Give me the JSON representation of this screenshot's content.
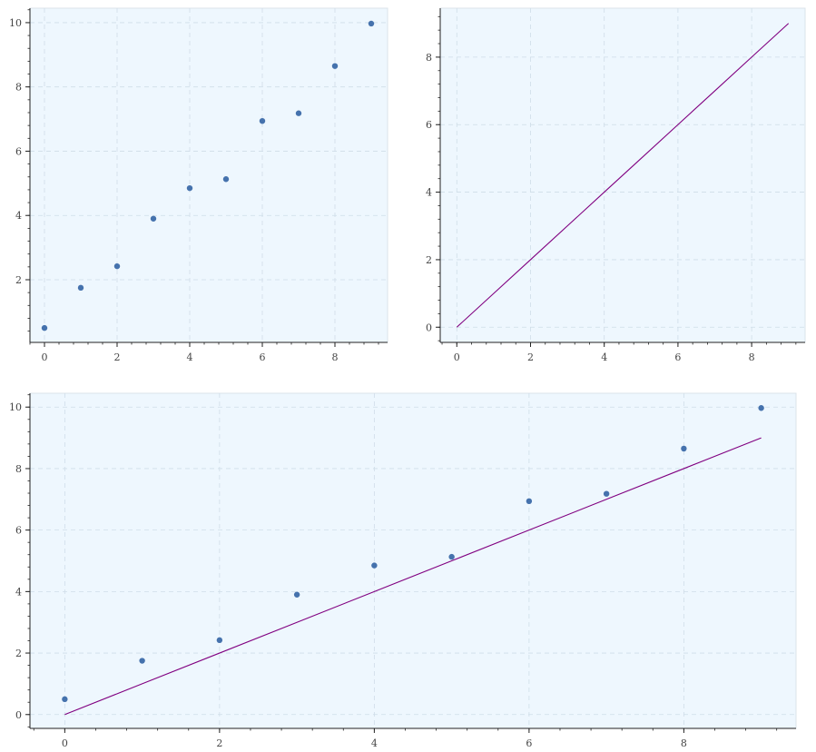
{
  "colors": {
    "plot_background": "#eef7fe",
    "scatter": "#4572ad",
    "line": "#800080"
  },
  "chart_data": [
    {
      "id": "scatter-chart",
      "type": "scatter",
      "title": "",
      "xlabel": "",
      "ylabel": "",
      "grid": true,
      "xlim": [
        -0.4,
        9.45
      ],
      "ylim": [
        0.05,
        10.45
      ],
      "x_ticks": [
        0,
        2,
        4,
        6,
        8
      ],
      "y_ticks": [
        2,
        4,
        6,
        8,
        10
      ],
      "series": [
        {
          "type": "scatter",
          "color": "#4572ad",
          "x": [
            0,
            1,
            2,
            3,
            4,
            5,
            6,
            7,
            8,
            9
          ],
          "y": [
            0.5,
            1.75,
            2.42,
            3.9,
            4.85,
            5.13,
            6.94,
            7.18,
            8.65,
            9.97
          ]
        }
      ]
    },
    {
      "id": "line-chart",
      "type": "line",
      "title": "",
      "xlabel": "",
      "ylabel": "",
      "grid": true,
      "xlim": [
        -0.45,
        9.45
      ],
      "ylim": [
        -0.45,
        9.45
      ],
      "x_ticks": [
        0,
        2,
        4,
        6,
        8
      ],
      "y_ticks": [
        0,
        2,
        4,
        6,
        8
      ],
      "series": [
        {
          "type": "line",
          "color": "#800080",
          "x": [
            0,
            1,
            2,
            3,
            4,
            5,
            6,
            7,
            8,
            9
          ],
          "y": [
            0,
            1,
            2,
            3,
            4,
            5,
            6,
            7,
            8,
            9
          ]
        }
      ]
    },
    {
      "id": "combined-chart",
      "type": "scatter",
      "title": "",
      "xlabel": "",
      "ylabel": "",
      "grid": true,
      "xlim": [
        -0.45,
        9.45
      ],
      "ylim": [
        -0.45,
        10.45
      ],
      "x_ticks": [
        0,
        2,
        4,
        6,
        8
      ],
      "y_ticks": [
        0,
        2,
        4,
        6,
        8,
        10
      ],
      "series": [
        {
          "type": "scatter",
          "color": "#4572ad",
          "x": [
            0,
            1,
            2,
            3,
            4,
            5,
            6,
            7,
            8,
            9
          ],
          "y": [
            0.5,
            1.75,
            2.42,
            3.9,
            4.85,
            5.13,
            6.94,
            7.18,
            8.65,
            9.97
          ]
        },
        {
          "type": "line",
          "color": "#800080",
          "x": [
            0,
            1,
            2,
            3,
            4,
            5,
            6,
            7,
            8,
            9
          ],
          "y": [
            0,
            1,
            2,
            3,
            4,
            5,
            6,
            7,
            8,
            9
          ]
        }
      ]
    }
  ]
}
